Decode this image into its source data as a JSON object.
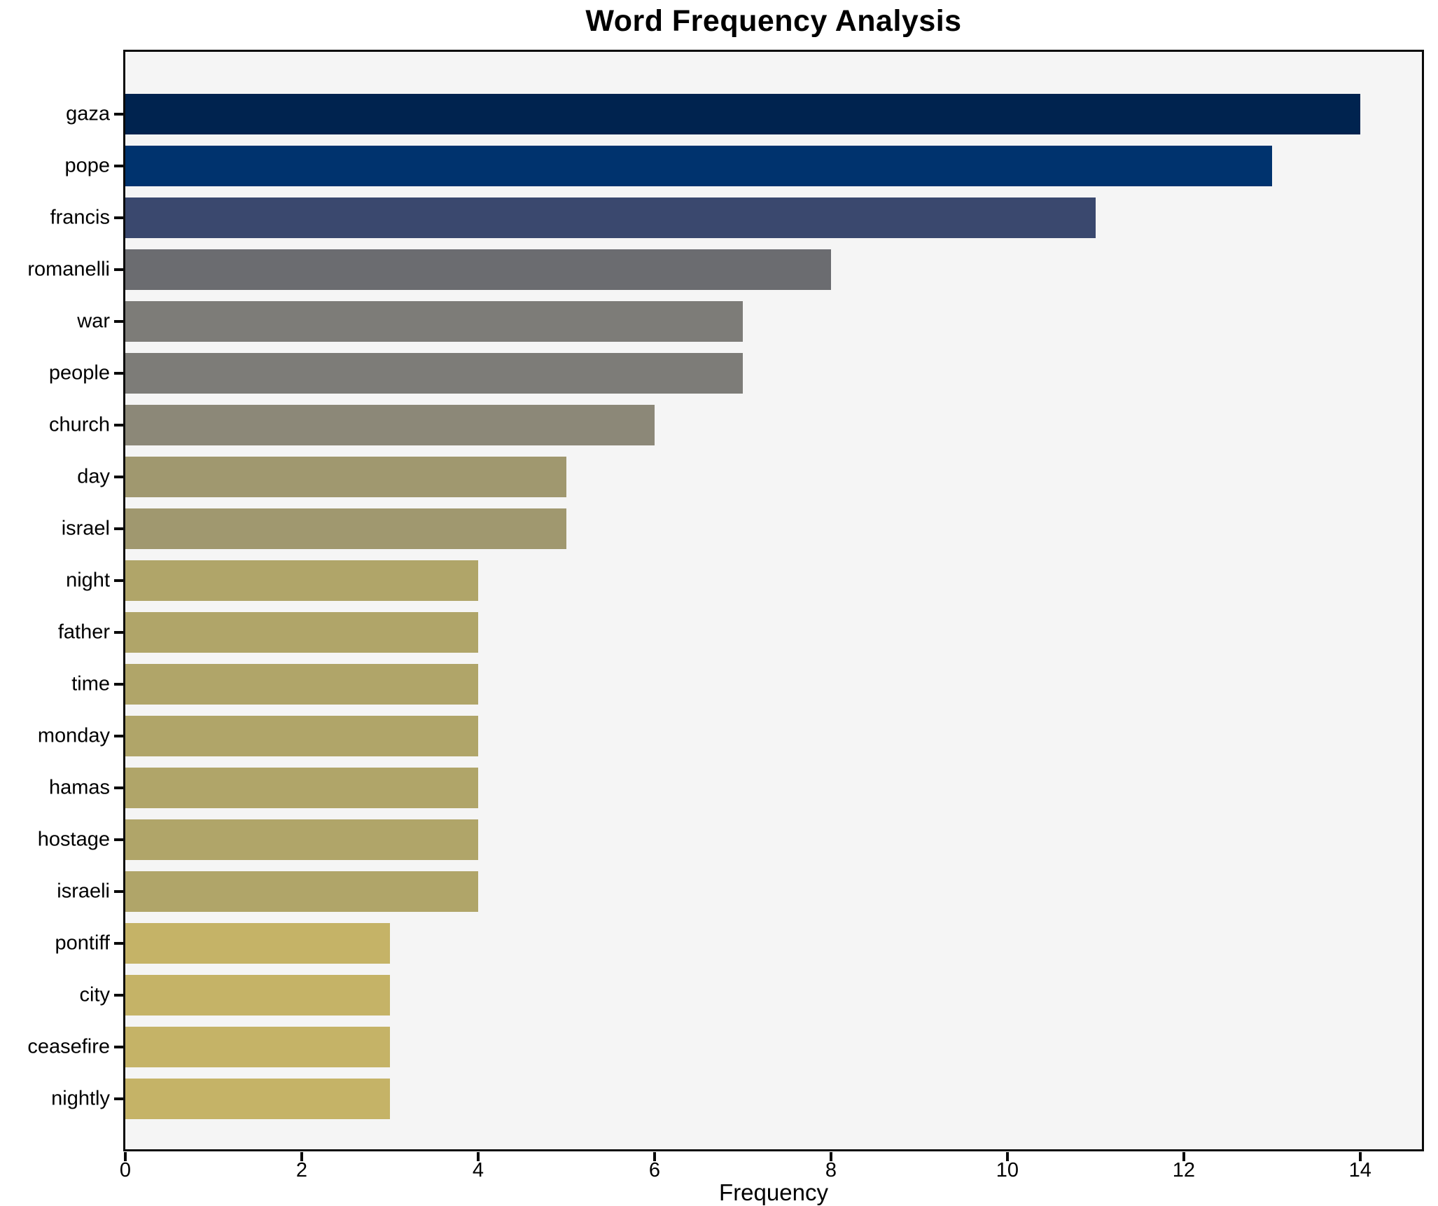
{
  "chart_data": {
    "type": "bar",
    "orientation": "horizontal",
    "title": "Word Frequency Analysis",
    "xlabel": "Frequency",
    "ylabel": "",
    "categories": [
      "gaza",
      "pope",
      "francis",
      "romanelli",
      "war",
      "people",
      "church",
      "day",
      "israel",
      "night",
      "father",
      "time",
      "monday",
      "hamas",
      "hostage",
      "israeli",
      "pontiff",
      "city",
      "ceasefire",
      "nightly"
    ],
    "values": [
      14,
      13,
      11,
      8,
      7,
      7,
      6,
      5,
      5,
      4,
      4,
      4,
      4,
      4,
      4,
      4,
      3,
      3,
      3,
      3
    ],
    "bar_colors": [
      "#00234f",
      "#00336e",
      "#3a486e",
      "#6b6c70",
      "#7d7c78",
      "#7d7c78",
      "#8c8878",
      "#a0986f",
      "#a0986f",
      "#b0a569",
      "#b0a569",
      "#b0a569",
      "#b0a569",
      "#b0a569",
      "#b0a569",
      "#b0a569",
      "#c5b367",
      "#c5b367",
      "#c5b367",
      "#c5b367"
    ],
    "x_ticks": [
      0,
      2,
      4,
      6,
      8,
      10,
      12,
      14
    ],
    "xlim": [
      0,
      14.7
    ],
    "grid": false,
    "legend": "none",
    "plot_background": "#f5f5f5",
    "figure_background": "#ffffff",
    "frame_color": "#0a0a0a"
  }
}
